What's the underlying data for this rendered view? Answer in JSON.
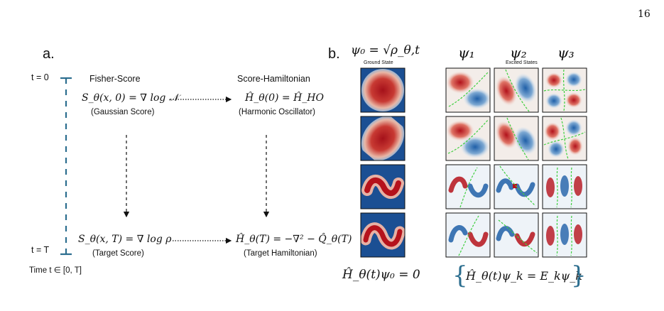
{
  "page_number": "16",
  "panel_a": {
    "label": "a.",
    "time_start": "t = 0",
    "time_end": "t = T",
    "time_range": "Time t ∈ [0, T]",
    "fisher_header": "Fisher-Score",
    "hamiltonian_header": "Score-Hamiltonian",
    "score_start_eq": "S_θ(x, 0) = ∇ log 𝒩",
    "score_start_caption": "(Gaussian Score)",
    "ham_start_eq": "Ĥ_θ(0) = Ĥ_HO",
    "ham_start_caption": "(Harmonic Oscillator)",
    "score_end_eq": "S_θ(x, T) = ∇ log ρ",
    "score_end_caption": "(Target Score)",
    "ham_end_eq": "Ĥ_θ(T) = −∇² − Q̂_θ(T)",
    "ham_end_caption": "(Target Hamiltonian)"
  },
  "panel_b": {
    "label": "b.",
    "psi0_header": "ψ₀ = √ρ_θ,t",
    "ground_state_label": "Ground State",
    "psi1_header": "ψ₁",
    "psi2_header": "ψ₂",
    "psi3_header": "ψ₃",
    "excited_states_label": "Excited States",
    "ground_eq": "Ĥ_θ(t)ψ₀ = 0",
    "excited_eq": "Ĥ_θ(t)ψ_k = E_kψ_k"
  },
  "colors": {
    "timeline": "#2c6e8f",
    "positive_density": "#b5121b",
    "negative_density": "#1f5fa8",
    "node_line": "#3fcf3f"
  }
}
